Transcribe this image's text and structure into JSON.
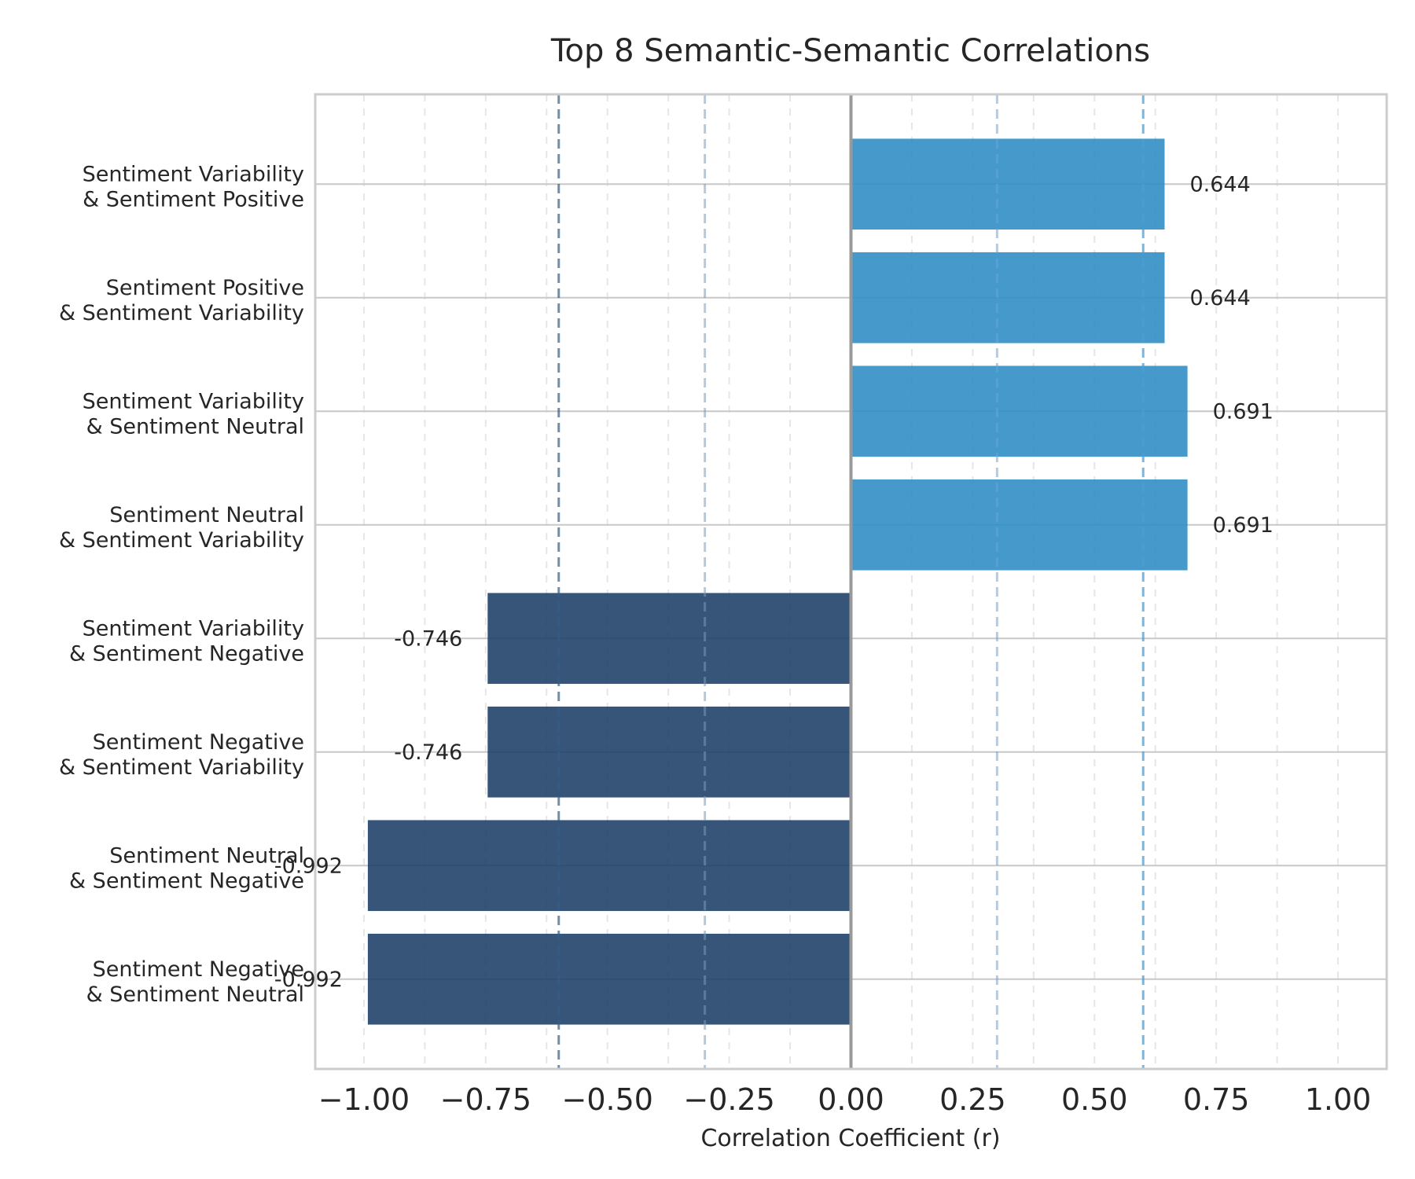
{
  "chart_data": {
    "type": "bar",
    "orientation": "horizontal",
    "title": "Top 8 Semantic-Semantic Correlations",
    "xlabel": "Correlation Coefficient (r)",
    "ylabel": "",
    "xlim": [
      -1.1,
      1.1
    ],
    "xticks": [
      -1.0,
      -0.75,
      -0.5,
      -0.25,
      0.0,
      0.25,
      0.5,
      0.75,
      1.0
    ],
    "xtick_labels": [
      "−1.00",
      "−0.75",
      "−0.50",
      "−0.25",
      "0.00",
      "0.25",
      "0.50",
      "0.75",
      "1.00"
    ],
    "categories": [
      [
        "Sentiment Variability",
        "& Sentiment Positive"
      ],
      [
        "Sentiment Positive",
        "& Sentiment Variability"
      ],
      [
        "Sentiment Variability",
        "& Sentiment Neutral"
      ],
      [
        "Sentiment Neutral",
        "& Sentiment Variability"
      ],
      [
        "Sentiment Variability",
        "& Sentiment Negative"
      ],
      [
        "Sentiment Negative",
        "& Sentiment Variability"
      ],
      [
        "Sentiment Neutral",
        "& Sentiment Negative"
      ],
      [
        "Sentiment Negative",
        "& Sentiment Neutral"
      ]
    ],
    "values": [
      0.644,
      0.644,
      0.691,
      0.691,
      -0.746,
      -0.746,
      -0.992,
      -0.992
    ],
    "value_labels": [
      "0.644",
      "0.644",
      "0.691",
      "0.691",
      "-0.746",
      "-0.746",
      "-0.992",
      "-0.992"
    ],
    "reference_lines": [
      {
        "x": -0.6,
        "color": "#2f5f8a",
        "opacity": 0.7
      },
      {
        "x": -0.3,
        "color": "#7b9ab8",
        "opacity": 0.55
      },
      {
        "x": 0.3,
        "color": "#6fa3d8",
        "opacity": 0.55
      },
      {
        "x": 0.6,
        "color": "#4a9fd6",
        "opacity": 0.75
      }
    ],
    "colors": {
      "positive": "#2b8cc4",
      "negative": "#1b3e66",
      "bar_opacity": 0.88,
      "zero_line": "#999999",
      "grid": "#e6e6e6",
      "row_line": "#c8c8c8",
      "frame": "#cccccc"
    },
    "grid": true,
    "legend": "none"
  }
}
